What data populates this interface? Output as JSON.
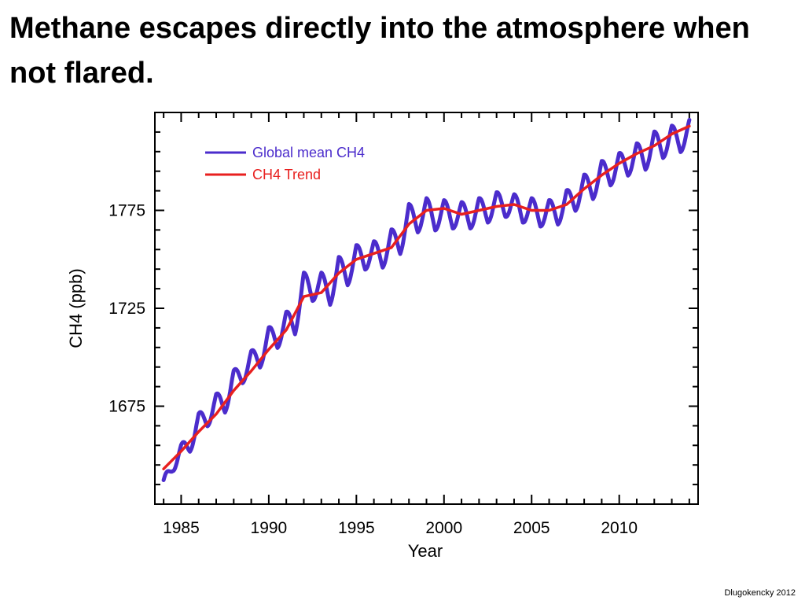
{
  "slide": {
    "title": "Methane escapes directly into the atmosphere when not flared.",
    "credit": "Dlugokencky 2012"
  },
  "chart_data": {
    "type": "line",
    "xlabel": "Year",
    "ylabel": "CH4 (ppb)",
    "xlim": [
      1983.5,
      2014.5
    ],
    "ylim": [
      1625,
      1825
    ],
    "x_ticks": [
      1985,
      1990,
      1995,
      2000,
      2005,
      2010
    ],
    "y_ticks": [
      1675,
      1725,
      1775
    ],
    "legend_position": "top-left",
    "series": [
      {
        "name": "Global mean CH4",
        "color": "#4b2ccc",
        "seasonal_amplitude_ppb": 8,
        "x": [
          1984.0,
          1984.5,
          1985.0,
          1985.5,
          1986.0,
          1986.5,
          1987.0,
          1987.5,
          1988.0,
          1988.5,
          1989.0,
          1989.5,
          1990.0,
          1990.5,
          1991.0,
          1991.5,
          1992.0,
          1992.5,
          1993.0,
          1993.5,
          1994.0,
          1994.5,
          1995.0,
          1995.5,
          1996.0,
          1996.5,
          1997.0,
          1997.5,
          1998.0,
          1998.5,
          1999.0,
          1999.5,
          2000.0,
          2000.5,
          2001.0,
          2001.5,
          2002.0,
          2002.5,
          2003.0,
          2003.5,
          2004.0,
          2004.5,
          2005.0,
          2005.5,
          2006.0,
          2006.5,
          2007.0,
          2007.5,
          2008.0,
          2008.5,
          2009.0,
          2009.5,
          2010.0,
          2010.5,
          2011.0,
          2011.5,
          2012.0,
          2012.5,
          2013.0,
          2013.5,
          2014.0
        ],
        "y": [
          1634,
          1645,
          1652,
          1655,
          1668,
          1668,
          1678,
          1675,
          1690,
          1690,
          1700,
          1698,
          1712,
          1708,
          1720,
          1715,
          1740,
          1732,
          1740,
          1730,
          1748,
          1740,
          1754,
          1748,
          1756,
          1749,
          1762,
          1756,
          1775,
          1767,
          1778,
          1768,
          1777,
          1769,
          1776,
          1769,
          1778,
          1772,
          1781,
          1775,
          1780,
          1772,
          1778,
          1770,
          1777,
          1771,
          1782,
          1778,
          1790,
          1784,
          1797,
          1791,
          1801,
          1796,
          1806,
          1799,
          1812,
          1805,
          1815,
          1808,
          1818
        ]
      },
      {
        "name": "CH4 Trend",
        "color": "#e8201f",
        "x": [
          1984.0,
          1985.0,
          1986.0,
          1987.0,
          1988.0,
          1989.0,
          1990.0,
          1991.0,
          1992.0,
          1993.0,
          1994.0,
          1995.0,
          1996.0,
          1997.0,
          1998.0,
          1999.0,
          2000.0,
          2001.0,
          2002.0,
          2003.0,
          2004.0,
          2005.0,
          2006.0,
          2007.0,
          2008.0,
          2009.0,
          2010.0,
          2011.0,
          2012.0,
          2013.0,
          2014.0
        ],
        "y": [
          1643,
          1652,
          1662,
          1671,
          1683,
          1693,
          1704,
          1714,
          1731,
          1733,
          1743,
          1750,
          1753,
          1756,
          1768,
          1775,
          1776,
          1773,
          1775,
          1777,
          1778,
          1775,
          1775,
          1778,
          1786,
          1793,
          1799,
          1804,
          1808,
          1814,
          1818
        ]
      }
    ]
  }
}
